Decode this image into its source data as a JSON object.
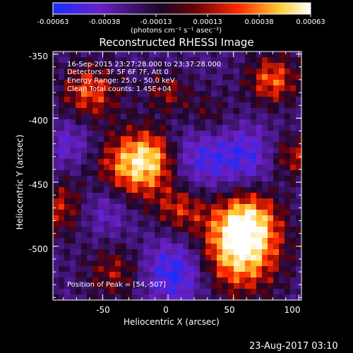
{
  "colorbar": {
    "ticks": [
      "-0.00063",
      "-0.00038",
      "-0.00013",
      "0.00013",
      "0.00038",
      "0.00063"
    ],
    "units": "(photons cm⁻² s⁻¹ asec⁻²)",
    "colors": [
      "#1a2cff",
      "#7a1fb6",
      "#1a0a2a",
      "#7a0010",
      "#ff3a00",
      "#ffd23a",
      "#ffffff"
    ]
  },
  "title": "Reconstructed RHESSI Image",
  "info": {
    "time_range": "16-Sep-2015 23:27:28.000 to 23:37:28.000",
    "detectors": "Detectors: 3F 5F 6F 7F, Att 0",
    "energy": "Energy Range: 25.0 - 50.0 keV",
    "clean": "Clean     Total counts: 1.45E+04"
  },
  "peak": "Position of Peak = [54,-507]",
  "axes": {
    "xlabel": "Heliocentric X (arcsec)",
    "ylabel": "Heliocentric Y (arcsec)",
    "xticks": [
      "-50",
      "0",
      "50",
      "100"
    ],
    "yticks": [
      "-350",
      "-400",
      "-450",
      "-500"
    ],
    "xlim": [
      -88,
      102
    ],
    "ylim": [
      -542,
      -348
    ]
  },
  "date_stamp": "23-Aug-2017 03:10",
  "image_blobs": [
    {
      "x": 54,
      "y": -507,
      "v": 1.0,
      "s": 22
    },
    {
      "x": 60,
      "y": -480,
      "v": 0.9,
      "s": 18
    },
    {
      "x": -30,
      "y": -440,
      "v": 0.8,
      "s": 20
    },
    {
      "x": -10,
      "y": -430,
      "v": 0.75,
      "s": 16
    },
    {
      "x": -60,
      "y": -380,
      "v": 0.7,
      "s": 16
    },
    {
      "x": 80,
      "y": -370,
      "v": 0.75,
      "s": 14
    },
    {
      "x": -80,
      "y": -470,
      "v": 0.6,
      "s": 16
    },
    {
      "x": 10,
      "y": -470,
      "v": 0.6,
      "s": 14
    },
    {
      "x": -40,
      "y": -520,
      "v": 0.5,
      "s": 16
    },
    {
      "x": 30,
      "y": -400,
      "v": 0.4,
      "s": 14
    },
    {
      "x": 95,
      "y": -430,
      "v": 0.55,
      "s": 12
    },
    {
      "x": 0,
      "y": -380,
      "v": 0.45,
      "s": 12
    },
    {
      "x": 20,
      "y": -430,
      "v": -0.6,
      "s": 20
    },
    {
      "x": 5,
      "y": -520,
      "v": -0.7,
      "s": 18
    },
    {
      "x": -50,
      "y": -470,
      "v": -0.5,
      "s": 16
    },
    {
      "x": 60,
      "y": -430,
      "v": -0.5,
      "s": 16
    },
    {
      "x": -75,
      "y": -420,
      "v": -0.4,
      "s": 14
    }
  ]
}
